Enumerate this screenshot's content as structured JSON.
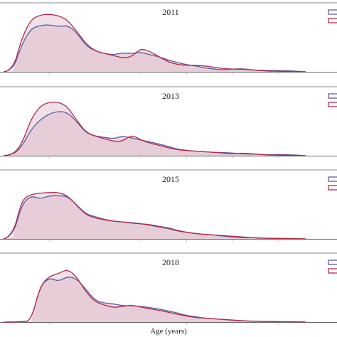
{
  "figure": {
    "xlabel": "Age (years)",
    "colors": {
      "blue_series": "#5b5ba5",
      "red_series": "#b0294a",
      "fill": "#e3c6d3",
      "frame": "#888888"
    }
  },
  "chart_data": [
    {
      "type": "area",
      "title": "2011",
      "x": [
        20,
        22,
        24,
        26,
        28,
        30,
        32,
        34,
        36,
        38,
        40,
        42,
        44,
        46,
        48,
        50,
        52,
        54,
        56,
        58,
        60,
        62,
        64,
        66,
        68,
        70,
        72,
        74,
        76,
        78,
        80,
        82,
        84,
        86
      ],
      "series": [
        {
          "values": [
            0,
            0.01,
            0.42,
            0.66,
            0.71,
            0.72,
            0.69,
            0.71,
            0.6,
            0.4,
            0.32,
            0.28,
            0.26,
            0.29,
            0.28,
            0.3,
            0.26,
            0.23,
            0.18,
            0.14,
            0.11,
            0.09,
            0.06,
            0.04,
            0.03,
            0.04,
            0.05,
            0.03,
            0.025,
            0.02,
            0.02,
            0.015,
            0.01,
            0
          ]
        },
        {
          "values": [
            0,
            0.01,
            0.52,
            0.8,
            0.87,
            0.88,
            0.86,
            0.79,
            0.62,
            0.43,
            0.32,
            0.28,
            0.25,
            0.21,
            0.23,
            0.36,
            0.31,
            0.23,
            0.15,
            0.11,
            0.1,
            0.1,
            0.09,
            0.07,
            0.05,
            0.04,
            0.04,
            0.03,
            0.02,
            0.01,
            0.01,
            0.005,
            0.005,
            0
          ]
        }
      ],
      "xlim": [
        20,
        91
      ]
    },
    {
      "type": "area",
      "title": "2013",
      "x": [
        20,
        22,
        24,
        26,
        28,
        30,
        32,
        34,
        36,
        38,
        40,
        42,
        44,
        46,
        48,
        50,
        52,
        54,
        56,
        58,
        60,
        62,
        64,
        66,
        68,
        70,
        72,
        74,
        76,
        78,
        80,
        82,
        84,
        86
      ],
      "series": [
        {
          "values": [
            0,
            0.01,
            0.14,
            0.4,
            0.55,
            0.64,
            0.68,
            0.66,
            0.52,
            0.35,
            0.3,
            0.28,
            0.26,
            0.3,
            0.27,
            0.24,
            0.21,
            0.18,
            0.14,
            0.1,
            0.08,
            0.07,
            0.06,
            0.05,
            0.05,
            0.04,
            0.03,
            0.025,
            0.02,
            0.015,
            0.02,
            0.015,
            0.01,
            0
          ]
        },
        {
          "values": [
            0,
            0.01,
            0.18,
            0.56,
            0.76,
            0.82,
            0.82,
            0.75,
            0.54,
            0.36,
            0.3,
            0.26,
            0.22,
            0.22,
            0.32,
            0.24,
            0.19,
            0.16,
            0.12,
            0.09,
            0.08,
            0.07,
            0.06,
            0.05,
            0.04,
            0.03,
            0.04,
            0.03,
            0.02,
            0.01,
            0.01,
            0.005,
            0.005,
            0
          ]
        }
      ],
      "xlim": [
        20,
        91
      ]
    },
    {
      "type": "area",
      "title": "2015",
      "x": [
        20,
        22,
        24,
        26,
        28,
        30,
        32,
        34,
        36,
        38,
        40,
        42,
        44,
        46,
        48,
        50,
        52,
        54,
        56,
        58,
        60,
        62,
        64,
        66,
        68,
        70,
        72,
        74,
        76,
        78,
        80,
        82,
        84,
        86
      ],
      "series": [
        {
          "values": [
            0,
            0.03,
            0.53,
            0.66,
            0.61,
            0.66,
            0.66,
            0.65,
            0.52,
            0.38,
            0.34,
            0.3,
            0.27,
            0.26,
            0.25,
            0.23,
            0.21,
            0.18,
            0.16,
            0.12,
            0.1,
            0.08,
            0.07,
            0.06,
            0.04,
            0.03,
            0.02,
            0.02,
            0.015,
            0.01,
            0.01,
            0.005,
            0.005,
            0
          ]
        },
        {
          "values": [
            0,
            0.04,
            0.6,
            0.68,
            0.7,
            0.71,
            0.71,
            0.66,
            0.51,
            0.37,
            0.32,
            0.29,
            0.27,
            0.26,
            0.24,
            0.23,
            0.22,
            0.19,
            0.17,
            0.13,
            0.1,
            0.08,
            0.07,
            0.06,
            0.05,
            0.04,
            0.03,
            0.02,
            0.01,
            0.01,
            0.005,
            0.005,
            0.005,
            0
          ]
        }
      ],
      "xlim": [
        20,
        91
      ]
    },
    {
      "type": "area",
      "title": "2018",
      "x": [
        20,
        22,
        24,
        26,
        28,
        30,
        32,
        34,
        36,
        38,
        40,
        42,
        44,
        46,
        48,
        50,
        52,
        54,
        56,
        58,
        60,
        62,
        64,
        66,
        68,
        70,
        72,
        74,
        76,
        78,
        80,
        82,
        84,
        86
      ],
      "series": [
        {
          "values": [
            0,
            0,
            0.005,
            0.02,
            0.55,
            0.68,
            0.62,
            0.7,
            0.66,
            0.5,
            0.33,
            0.29,
            0.28,
            0.25,
            0.25,
            0.24,
            0.22,
            0.2,
            0.17,
            0.14,
            0.1,
            0.08,
            0.06,
            0.05,
            0.04,
            0.03,
            0.02,
            0.015,
            0.01,
            0.01,
            0.005,
            0.005,
            0.005,
            0
          ]
        },
        {
          "values": [
            0,
            0,
            0.005,
            0.02,
            0.55,
            0.7,
            0.74,
            0.81,
            0.69,
            0.46,
            0.31,
            0.26,
            0.22,
            0.24,
            0.26,
            0.23,
            0.2,
            0.18,
            0.15,
            0.12,
            0.09,
            0.07,
            0.06,
            0.05,
            0.04,
            0.03,
            0.02,
            0.015,
            0.01,
            0.01,
            0.005,
            0.005,
            0.005,
            0
          ]
        }
      ],
      "xlim": [
        20,
        91
      ]
    }
  ]
}
